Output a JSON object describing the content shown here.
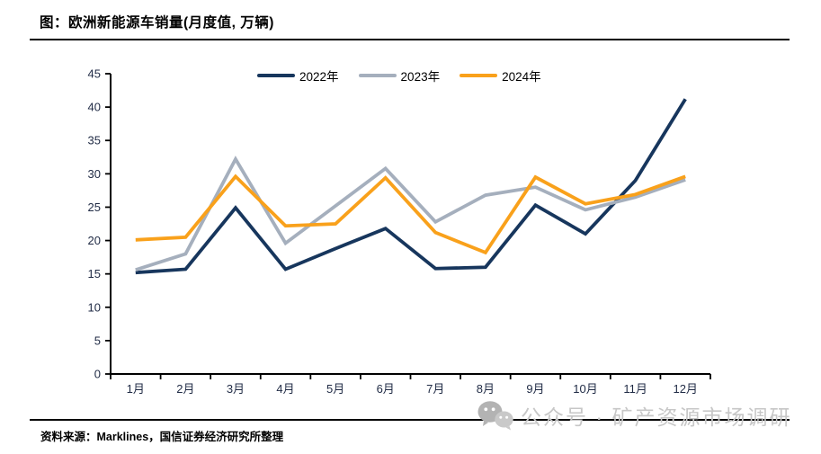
{
  "header": {
    "title": "图：欧洲新能源车销量(月度值, 万辆)"
  },
  "chart_data": {
    "type": "line",
    "title": "欧洲新能源车销量(月度值, 万辆)",
    "unit": "万辆",
    "categories": [
      "1月",
      "2月",
      "3月",
      "4月",
      "5月",
      "6月",
      "7月",
      "8月",
      "9月",
      "10月",
      "11月",
      "12月"
    ],
    "series": [
      {
        "name": "2022年",
        "color": "#17365D",
        "values": [
          15.2,
          15.7,
          24.9,
          15.7,
          18.8,
          21.8,
          15.8,
          16.0,
          25.3,
          21.0,
          29.0,
          41.2
        ]
      },
      {
        "name": "2023年",
        "color": "#A5AFBD",
        "values": [
          15.6,
          18.0,
          32.2,
          19.6,
          25.2,
          30.8,
          22.8,
          26.8,
          28.0,
          24.6,
          26.5,
          29.1
        ]
      },
      {
        "name": "2024年",
        "color": "#F9A11B",
        "values": [
          20.1,
          20.5,
          29.6,
          22.2,
          22.5,
          29.4,
          21.2,
          18.2,
          29.5,
          25.5,
          26.9,
          29.6
        ]
      }
    ],
    "ylim": [
      0,
      45
    ],
    "ytick_step": 5,
    "yticks": [
      0,
      5,
      10,
      15,
      20,
      25,
      30,
      35,
      40,
      45
    ],
    "grid": false,
    "legend_position": "top-center",
    "axis_color": "#000000",
    "tick_label_color": "#1F2A44"
  },
  "footer": {
    "source": "资料来源：Marklines，国信证券经济研究所整理"
  },
  "watermark": {
    "text": "公众号 · 矿产资源市场调研",
    "color": "#c7c7c7"
  }
}
